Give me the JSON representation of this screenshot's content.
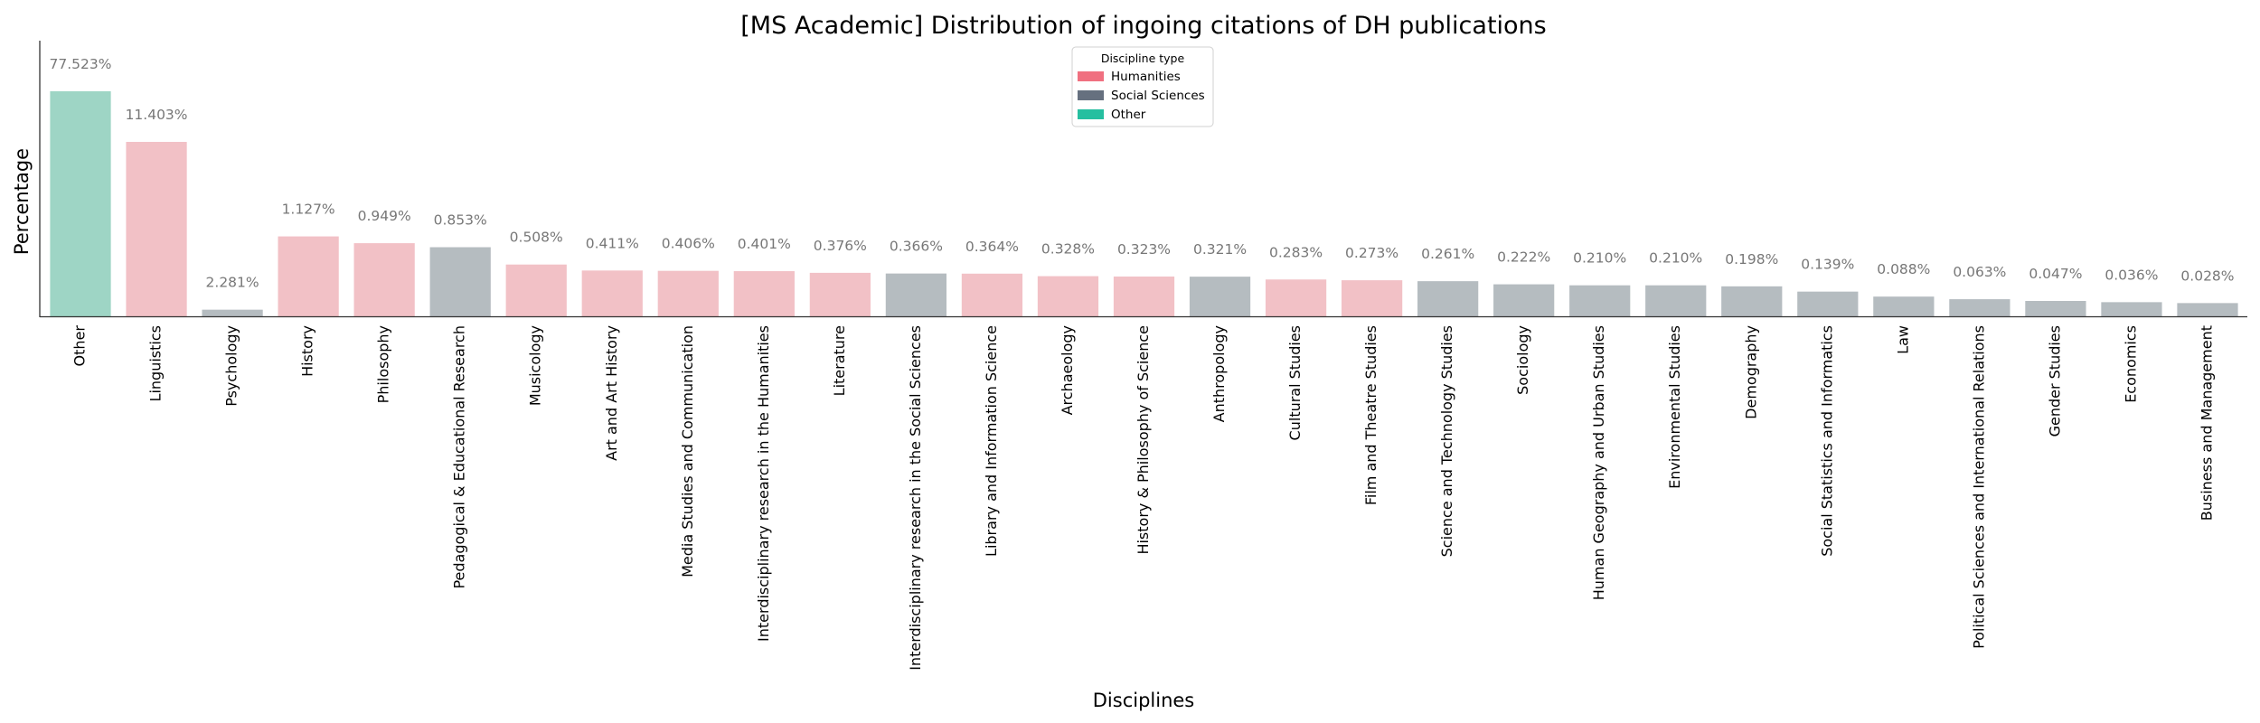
{
  "chart_data": {
    "type": "bar",
    "title": "[MS Academic] Distribution of ingoing citations of DH publications",
    "xlabel": "Disciplines",
    "ylabel": "Percentage",
    "ylim": [
      0,
      100
    ],
    "grid": false,
    "legend": {
      "title": "Discipline type",
      "placement": "top-center",
      "entries": [
        {
          "name": "Humanities",
          "color": "#f07080"
        },
        {
          "name": "Social Sciences",
          "color": "#66707f"
        },
        {
          "name": "Other",
          "color": "#26bfa0"
        }
      ]
    },
    "bar_colors": {
      "Humanities": "#f2c1c6",
      "Social Sciences": "#b5bcc0",
      "Other": "#9ed5c5"
    },
    "categories": [
      "Other",
      "Linguistics",
      "Psychology",
      "History",
      "Philosophy",
      "Pedagogical & Educational Research",
      "Musicology",
      "Art and Art History",
      "Media Studies and Communication",
      "Interdisciplinary research in the Humanities",
      "Literature",
      "Interdisciplinary research in the Social Sciences",
      "Library and Information Science",
      "Archaeology",
      "History & Philosophy of Science",
      "Anthropology",
      "Cultural Studies",
      "Film and Theatre Studies",
      "Science and Technology Studies",
      "Sociology",
      "Human Geography and Urban Studies",
      "Environmental Studies",
      "Demography",
      "Social Statistics and Informatics",
      "Law",
      "Political Sciences and International Relations",
      "Gender Studies",
      "Economics",
      "Business and Management"
    ],
    "types": [
      "Other",
      "Humanities",
      "Social Sciences",
      "Humanities",
      "Humanities",
      "Social Sciences",
      "Humanities",
      "Humanities",
      "Humanities",
      "Humanities",
      "Humanities",
      "Social Sciences",
      "Humanities",
      "Humanities",
      "Humanities",
      "Social Sciences",
      "Humanities",
      "Humanities",
      "Social Sciences",
      "Social Sciences",
      "Social Sciences",
      "Social Sciences",
      "Social Sciences",
      "Social Sciences",
      "Social Sciences",
      "Social Sciences",
      "Social Sciences",
      "Social Sciences",
      "Social Sciences"
    ],
    "values": [
      77.523,
      11.403,
      2.281,
      1.127,
      0.949,
      0.853,
      0.508,
      0.411,
      0.406,
      0.401,
      0.376,
      0.366,
      0.364,
      0.328,
      0.323,
      0.321,
      0.283,
      0.273,
      0.261,
      0.222,
      0.21,
      0.21,
      0.198,
      0.139,
      0.088,
      0.063,
      0.047,
      0.036,
      0.028
    ],
    "value_labels": [
      "77.523%",
      "11.403%",
      "2.281%",
      "1.127%",
      "0.949%",
      "0.853%",
      "0.508%",
      "0.411%",
      "0.406%",
      "0.401%",
      "0.376%",
      "0.366%",
      "0.364%",
      "0.328%",
      "0.323%",
      "0.321%",
      "0.283%",
      "0.273%",
      "0.261%",
      "0.222%",
      "0.210%",
      "0.210%",
      "0.198%",
      "0.139%",
      "0.088%",
      "0.063%",
      "0.047%",
      "0.036%",
      "0.028%"
    ]
  }
}
